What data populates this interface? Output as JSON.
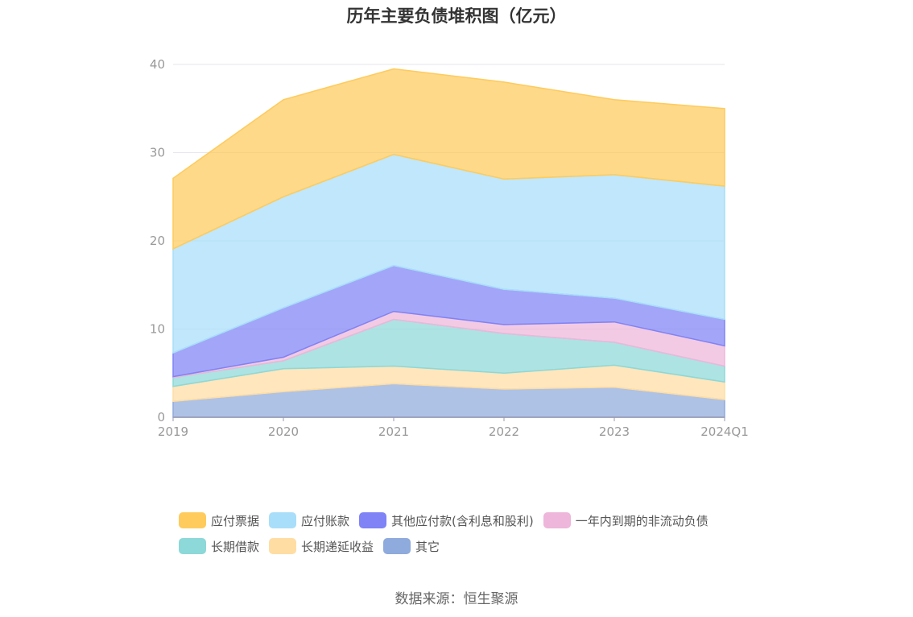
{
  "chart_data": {
    "type": "area",
    "stacked": true,
    "title": "历年主要负债堆积图（亿元）",
    "categories": [
      "2019",
      "2020",
      "2021",
      "2022",
      "2023",
      "2024Q1"
    ],
    "ylim": [
      0,
      40
    ],
    "yticks": [
      0,
      10,
      20,
      30,
      40
    ],
    "grid": true,
    "legend_position": "bottom",
    "series": [
      {
        "name": "其它",
        "color": "#8FAADC",
        "values": [
          1.8,
          2.9,
          3.8,
          3.2,
          3.4,
          2.0
        ]
      },
      {
        "name": "长期递延收益",
        "color": "#FFDDA3",
        "values": [
          1.7,
          2.6,
          2.0,
          1.8,
          2.5,
          2.0
        ]
      },
      {
        "name": "长期借款",
        "color": "#8DD8D8",
        "values": [
          1.0,
          0.9,
          5.3,
          4.5,
          2.6,
          1.8
        ]
      },
      {
        "name": "一年内到期的非流动负债",
        "color": "#EDB6DA",
        "values": [
          0.1,
          0.4,
          0.9,
          1.0,
          2.3,
          2.3
        ]
      },
      {
        "name": "其他应付款(含利息和股利)",
        "color": "#7F83F5",
        "values": [
          2.7,
          5.6,
          5.2,
          4.0,
          2.7,
          3.0
        ]
      },
      {
        "name": "应付账款",
        "color": "#A8DEF9",
        "values": [
          11.8,
          12.6,
          12.6,
          12.5,
          14.0,
          15.1
        ]
      },
      {
        "name": "应付票据",
        "color": "#FECB5C",
        "values": [
          8.0,
          11.0,
          9.7,
          11.0,
          8.5,
          8.8
        ]
      }
    ],
    "legend_order": [
      "应付票据",
      "应付账款",
      "其他应付款(含利息和股利)",
      "一年内到期的非流动负债",
      "长期借款",
      "长期递延收益",
      "其它"
    ]
  },
  "source": "数据来源：恒生聚源"
}
